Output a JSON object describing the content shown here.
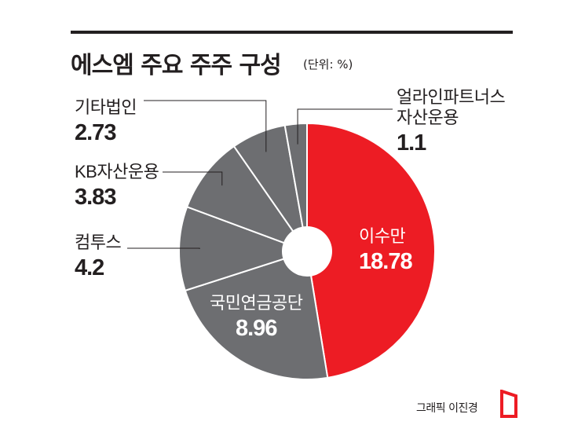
{
  "header": {
    "title": "에스엠 주요 주주 구성",
    "unit": "(단위: %)"
  },
  "credit": {
    "text": "그래픽 이진경",
    "logo_color": "#ed1c24"
  },
  "colors": {
    "highlight": "#ed1c24",
    "other": "#6d6e71",
    "separator": "#ffffff",
    "leader": "#231f20"
  },
  "chart_data": {
    "type": "pie",
    "title": "에스엠 주요 주주 구성",
    "unit": "(단위: %)",
    "donut": true,
    "start": "12 o'clock",
    "direction": "clockwise",
    "slices": [
      {
        "name": "이수만",
        "value": 18.78,
        "display": "18.78",
        "color": "#ed1c24"
      },
      {
        "name": "국민연금공단",
        "value": 8.96,
        "display": "8.96",
        "color": "#6d6e71"
      },
      {
        "name": "컴투스",
        "value": 4.2,
        "display": "4.2",
        "color": "#6d6e71"
      },
      {
        "name": "KB자산운용",
        "value": 3.83,
        "display": "3.83",
        "color": "#6d6e71"
      },
      {
        "name": "기타법인",
        "value": 2.73,
        "display": "2.73",
        "color": "#6d6e71"
      },
      {
        "name": "얼라인파트너스\n자산운용",
        "value": 1.1,
        "display": "1.1",
        "color": "#6d6e71"
      }
    ]
  }
}
